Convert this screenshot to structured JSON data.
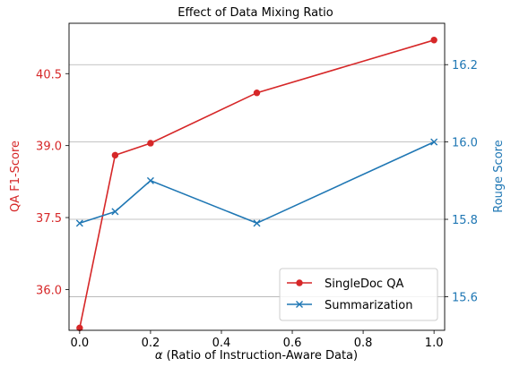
{
  "chart_data": {
    "type": "line",
    "title": "Effect of Data Mixing Ratio",
    "xlabel_symbol": "α",
    "xlabel_text": " (Ratio of Instruction-Aware Data)",
    "x": [
      0.0,
      0.1,
      0.2,
      0.5,
      1.0
    ],
    "xlim": [
      -0.03,
      1.03
    ],
    "xticks": [
      "0.0",
      "0.2",
      "0.4",
      "0.6",
      "0.8",
      "1.0"
    ],
    "xtick_values": [
      0.0,
      0.2,
      0.4,
      0.6,
      0.8,
      1.0
    ],
    "left_axis": {
      "label": "QA F1-Score",
      "color": "#d62728",
      "ylim": [
        35.15,
        41.55
      ],
      "ticks": [
        "36.0",
        "37.5",
        "39.0",
        "40.5"
      ],
      "tick_values": [
        36.0,
        37.5,
        39.0,
        40.5
      ]
    },
    "right_axis": {
      "label": "Rouge Score",
      "color": "#1f77b4",
      "ylim": [
        15.513,
        16.307
      ],
      "ticks": [
        "15.6",
        "15.8",
        "16.0",
        "16.2"
      ],
      "tick_values": [
        15.6,
        15.8,
        16.0,
        16.2
      ]
    },
    "grid": "horizontal, right-axis ticks",
    "legend_position": "lower-right",
    "series": [
      {
        "name": "SingleDoc QA",
        "axis": "left",
        "color": "#d62728",
        "marker": "circle",
        "values": [
          35.2,
          38.8,
          39.05,
          40.1,
          41.2
        ]
      },
      {
        "name": "Summarization",
        "axis": "right",
        "color": "#1f77b4",
        "marker": "x",
        "values": [
          15.79,
          15.82,
          15.9,
          15.79,
          16.0
        ]
      }
    ]
  }
}
